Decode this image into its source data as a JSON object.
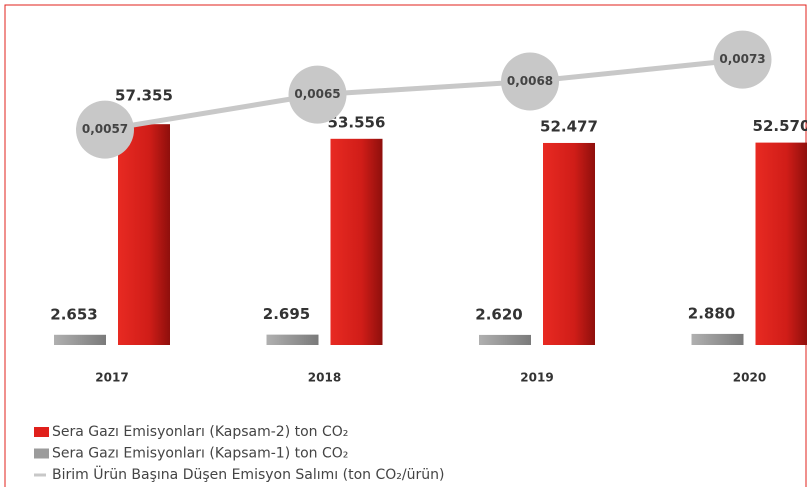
{
  "chart_data": {
    "type": "bar-line",
    "categories": [
      "2017",
      "2018",
      "2019",
      "2020"
    ],
    "series": [
      {
        "name": "Sera Gazı Emisyonları (Kapsam-2) ton CO₂",
        "color": "#e0201b",
        "type": "bar",
        "values": [
          57355,
          53556,
          52477,
          52570
        ],
        "value_labels": [
          "57.355",
          "53.556",
          "52.477",
          "52.570"
        ]
      },
      {
        "name": "Sera Gazı Emisyonları (Kapsam-1) ton CO₂",
        "color": "#9b9b9b",
        "type": "bar",
        "values": [
          2653,
          2695,
          2620,
          2880
        ],
        "value_labels": [
          "2.653",
          "2.695",
          "2.620",
          "2.880"
        ]
      },
      {
        "name": "Birim Ürün Başına Düşen Emisyon Salımı (ton CO₂/ürün)",
        "color": "#c8c8c8",
        "type": "line",
        "axis": "y2",
        "values": [
          0.0057,
          0.0065,
          0.0068,
          0.0073
        ],
        "value_labels": [
          "0,0057",
          "0,0065",
          "0,0068",
          "0,0073"
        ]
      }
    ],
    "ylim": [
      0,
      60000
    ],
    "y2lim": [
      0.004,
      0.008
    ]
  }
}
